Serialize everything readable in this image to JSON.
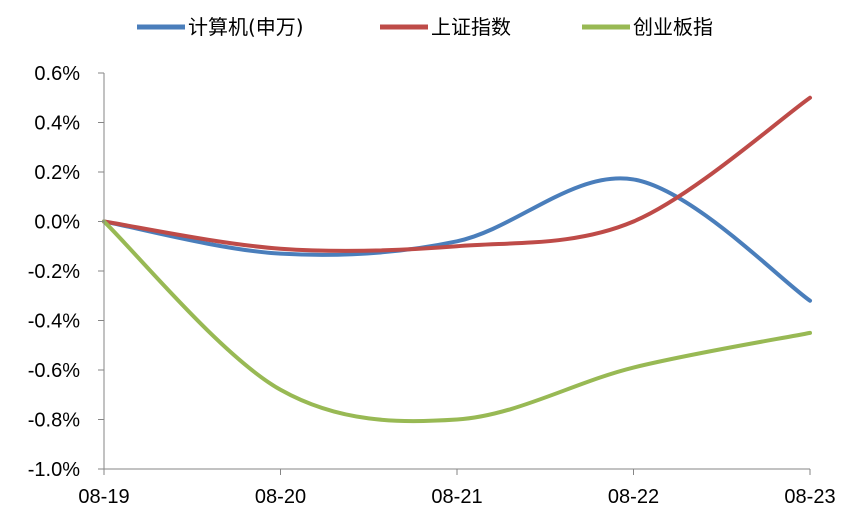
{
  "chart_data": {
    "type": "line",
    "categories": [
      "08-19",
      "08-20",
      "08-21",
      "08-22",
      "08-23"
    ],
    "yticks": [
      "0.6%",
      "0.4%",
      "0.2%",
      "0.0%",
      "-0.2%",
      "-0.4%",
      "-0.6%",
      "-0.8%",
      "-1.0%"
    ],
    "ylim": [
      -1.0,
      0.6
    ],
    "ytick_step": 0.2,
    "grid": false,
    "legend_position": "top",
    "series": [
      {
        "name": "计算机(申万)",
        "color": "#4a7ebb",
        "values": [
          0.0,
          -0.13,
          -0.08,
          0.17,
          -0.32
        ]
      },
      {
        "name": "上证指数",
        "color": "#be4b48",
        "values": [
          0.0,
          -0.11,
          -0.1,
          0.0,
          0.5
        ]
      },
      {
        "name": "创业板指",
        "color": "#98b954",
        "values": [
          0.0,
          -0.68,
          -0.8,
          -0.59,
          -0.45
        ]
      }
    ]
  }
}
